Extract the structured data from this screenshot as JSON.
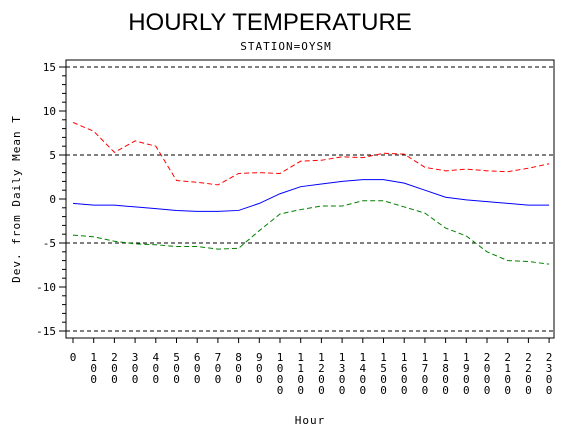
{
  "chart_data": {
    "type": "line",
    "title": "HOURLY TEMPERATURE",
    "subtitle": "STATION=OYSM",
    "xlabel": "Hour",
    "ylabel": "Dev. from Daily Mean T",
    "ylim": [
      -15,
      15
    ],
    "yticks": [
      -15,
      -10,
      -5,
      0,
      5,
      10,
      15
    ],
    "reference_lines": [
      15,
      5,
      -5,
      -15
    ],
    "x_tick_labels": [
      "0",
      "100",
      "200",
      "300",
      "400",
      "500",
      "600",
      "700",
      "800",
      "900",
      "1000",
      "1100",
      "1200",
      "1300",
      "1400",
      "1500",
      "1600",
      "1700",
      "1800",
      "1900",
      "2000",
      "2100",
      "2200",
      "2300"
    ],
    "x": [
      0,
      100,
      200,
      300,
      400,
      500,
      600,
      700,
      800,
      900,
      1000,
      1100,
      1200,
      1300,
      1400,
      1500,
      1600,
      1700,
      1800,
      1900,
      2000,
      2100,
      2200,
      2300
    ],
    "series": [
      {
        "style": "dashed",
        "color": "#ff0000",
        "values": [
          8.7,
          7.7,
          5.3,
          6.6,
          6.0,
          2.1,
          1.9,
          1.6,
          2.9,
          3.0,
          2.9,
          4.3,
          4.4,
          4.8,
          4.7,
          5.2,
          5.1,
          3.6,
          3.2,
          3.4,
          3.2,
          3.1,
          3.5,
          4.0
        ]
      },
      {
        "style": "solid",
        "color": "#0000ff",
        "values": [
          -0.5,
          -0.7,
          -0.7,
          -0.9,
          -1.1,
          -1.3,
          -1.4,
          -1.4,
          -1.3,
          -0.5,
          0.6,
          1.4,
          1.7,
          2.0,
          2.2,
          2.2,
          1.8,
          1.0,
          0.2,
          -0.1,
          -0.3,
          -0.5,
          -0.7,
          -0.7
        ]
      },
      {
        "style": "dashed",
        "color": "#008000",
        "values": [
          -4.1,
          -4.3,
          -4.8,
          -5.1,
          -5.2,
          -5.4,
          -5.4,
          -5.7,
          -5.6,
          -3.6,
          -1.7,
          -1.2,
          -0.8,
          -0.8,
          -0.2,
          -0.2,
          -0.9,
          -1.6,
          -3.3,
          -4.2,
          -6.0,
          -7.0,
          -7.1,
          -7.4
        ]
      }
    ]
  }
}
